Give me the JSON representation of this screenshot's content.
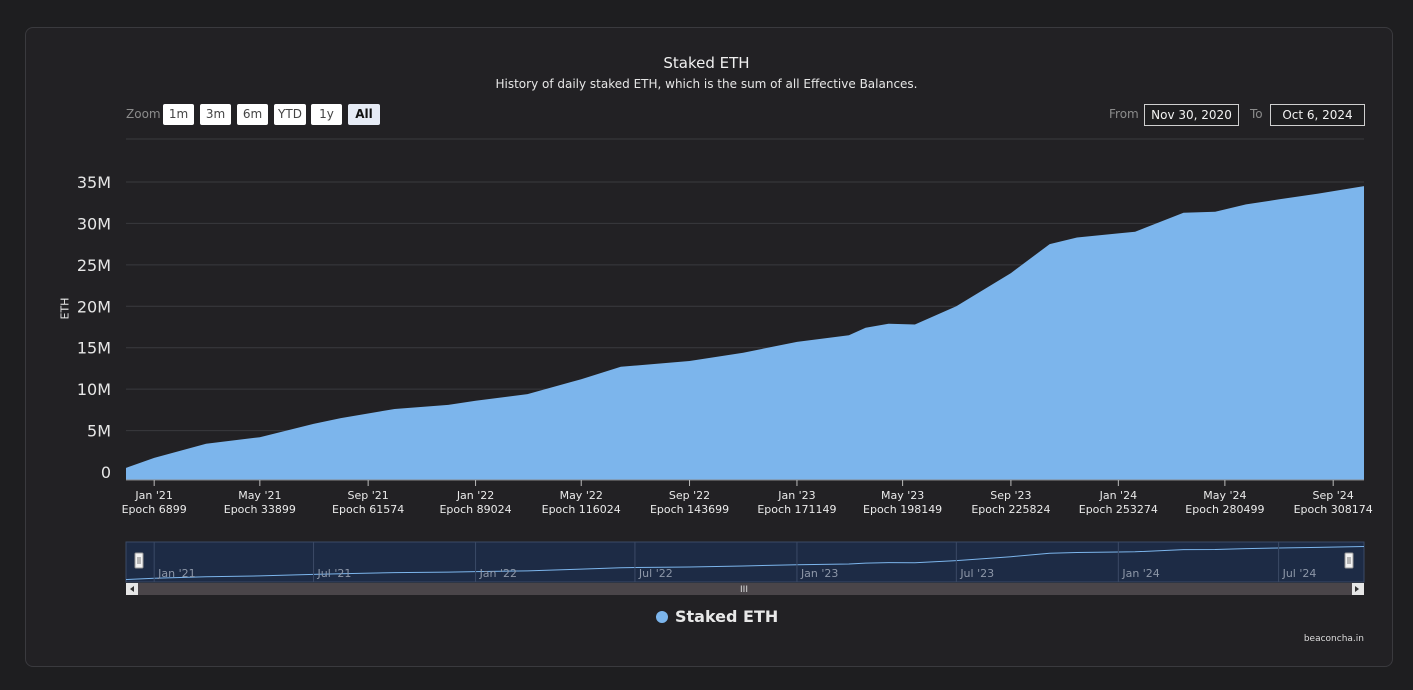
{
  "header": {
    "title": "Staked ETH",
    "subtitle": "History of daily staked ETH, which is the sum of all Effective Balances."
  },
  "zoom": {
    "label": "Zoom",
    "buttons": [
      "1m",
      "3m",
      "6m",
      "YTD",
      "1y",
      "All"
    ],
    "active": "All"
  },
  "range": {
    "from_label": "From",
    "from_value": "Nov 30, 2020",
    "to_label": "To",
    "to_value": "Oct 6, 2024"
  },
  "legend": {
    "label": "Staked ETH"
  },
  "credit": "beaconcha.in",
  "colors": {
    "series": "#7cb5ec",
    "background": "#222124",
    "grid": "#3a3a3e"
  },
  "navigator": {
    "labels": [
      "Jan '21",
      "Jul '21",
      "Jan '22",
      "Jul '22",
      "Jan '23",
      "Jul '23",
      "Jan '24",
      "Jul '24"
    ],
    "scrollbar_grip": "III"
  },
  "chart_data": {
    "type": "area",
    "title": "Staked ETH",
    "subtitle": "History of daily staked ETH, which is the sum of all Effective Balances.",
    "ylabel": "ETH",
    "ylim": [
      0,
      35000000
    ],
    "y_ticks": [
      "0",
      "5M",
      "10M",
      "15M",
      "20M",
      "25M",
      "30M",
      "35M"
    ],
    "x_range": [
      "2020-11-30",
      "2024-10-06"
    ],
    "x_ticks": [
      {
        "date": "2021-01-01",
        "label": "Jan '21",
        "epoch": "Epoch 6899"
      },
      {
        "date": "2021-05-01",
        "label": "May '21",
        "epoch": "Epoch 33899"
      },
      {
        "date": "2021-09-01",
        "label": "Sep '21",
        "epoch": "Epoch 61574"
      },
      {
        "date": "2022-01-01",
        "label": "Jan '22",
        "epoch": "Epoch 89024"
      },
      {
        "date": "2022-05-01",
        "label": "May '22",
        "epoch": "Epoch 116024"
      },
      {
        "date": "2022-09-01",
        "label": "Sep '22",
        "epoch": "Epoch 143699"
      },
      {
        "date": "2023-01-01",
        "label": "Jan '23",
        "epoch": "Epoch 171149"
      },
      {
        "date": "2023-05-01",
        "label": "May '23",
        "epoch": "Epoch 198149"
      },
      {
        "date": "2023-09-01",
        "label": "Sep '23",
        "epoch": "Epoch 225824"
      },
      {
        "date": "2024-01-01",
        "label": "Jan '24",
        "epoch": "Epoch 253274"
      },
      {
        "date": "2024-05-01",
        "label": "May '24",
        "epoch": "Epoch 280499"
      },
      {
        "date": "2024-09-01",
        "label": "Sep '24",
        "epoch": "Epoch 308174"
      }
    ],
    "series": [
      {
        "name": "Staked ETH",
        "points": [
          [
            "2020-11-30",
            500000
          ],
          [
            "2021-01-01",
            1700000
          ],
          [
            "2021-03-01",
            3400000
          ],
          [
            "2021-05-01",
            4200000
          ],
          [
            "2021-07-01",
            5800000
          ],
          [
            "2021-08-01",
            6500000
          ],
          [
            "2021-10-01",
            7600000
          ],
          [
            "2021-12-01",
            8100000
          ],
          [
            "2022-01-01",
            8600000
          ],
          [
            "2022-03-01",
            9400000
          ],
          [
            "2022-05-01",
            11200000
          ],
          [
            "2022-06-15",
            12700000
          ],
          [
            "2022-09-01",
            13400000
          ],
          [
            "2022-11-01",
            14400000
          ],
          [
            "2023-01-01",
            15700000
          ],
          [
            "2023-03-01",
            16500000
          ],
          [
            "2023-03-20",
            17400000
          ],
          [
            "2023-04-15",
            17900000
          ],
          [
            "2023-05-15",
            17800000
          ],
          [
            "2023-07-01",
            20000000
          ],
          [
            "2023-09-01",
            24000000
          ],
          [
            "2023-10-15",
            27500000
          ],
          [
            "2023-11-15",
            28300000
          ],
          [
            "2024-01-01",
            28800000
          ],
          [
            "2024-01-20",
            29000000
          ],
          [
            "2024-03-15",
            31300000
          ],
          [
            "2024-04-20",
            31400000
          ],
          [
            "2024-05-25",
            32300000
          ],
          [
            "2024-07-01",
            32900000
          ],
          [
            "2024-08-15",
            33600000
          ],
          [
            "2024-10-06",
            34500000
          ]
        ]
      }
    ]
  }
}
